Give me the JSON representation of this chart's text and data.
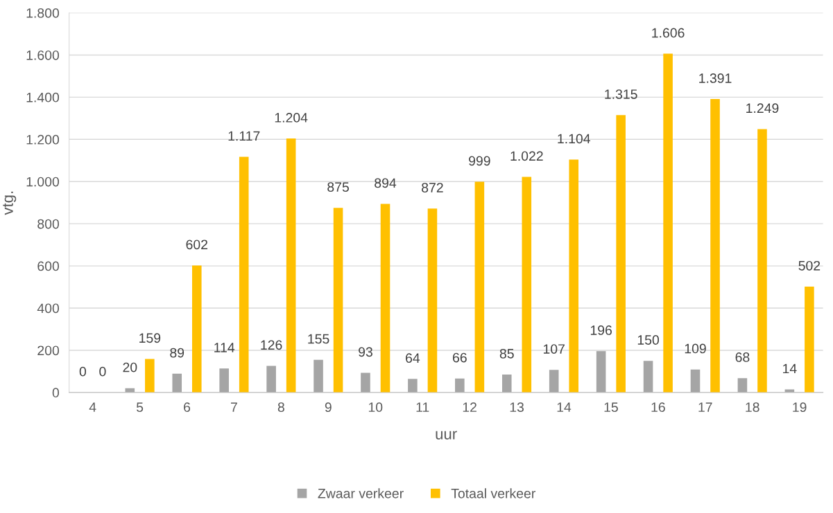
{
  "chart_data": {
    "type": "bar",
    "xlabel": "uur",
    "ylabel": "vtg.",
    "categories": [
      "4",
      "5",
      "6",
      "7",
      "8",
      "9",
      "10",
      "11",
      "12",
      "13",
      "14",
      "15",
      "16",
      "17",
      "18",
      "19"
    ],
    "series": [
      {
        "name": "Zwaar verkeer",
        "color": "#a5a5a5",
        "values": [
          0,
          20,
          89,
          114,
          126,
          155,
          93,
          64,
          66,
          85,
          107,
          196,
          150,
          109,
          68,
          14
        ],
        "value_labels": [
          "0",
          "20",
          "89",
          "114",
          "126",
          "155",
          "93",
          "64",
          "66",
          "85",
          "107",
          "196",
          "150",
          "109",
          "68",
          "14"
        ]
      },
      {
        "name": "Totaal verkeer",
        "color": "#ffc000",
        "values": [
          0,
          159,
          602,
          1117,
          1204,
          875,
          894,
          872,
          999,
          1022,
          1104,
          1315,
          1606,
          1391,
          1249,
          502
        ],
        "value_labels": [
          "0",
          "159",
          "602",
          "1.117",
          "1.204",
          "875",
          "894",
          "872",
          "999",
          "1.022",
          "1.104",
          "1.315",
          "1.606",
          "1.391",
          "1.249",
          "502"
        ]
      }
    ],
    "ylim": [
      0,
      1800
    ],
    "yticks": [
      0,
      200,
      400,
      600,
      800,
      {
        "value": 1000,
        "label": "1.000"
      },
      {
        "value": 1200,
        "label": "1.200"
      },
      {
        "value": 1400,
        "label": "1.400"
      },
      {
        "value": 1600,
        "label": "1.600"
      },
      {
        "value": 1800,
        "label": "1.800"
      }
    ],
    "grid": "y",
    "legend": "bottom"
  }
}
